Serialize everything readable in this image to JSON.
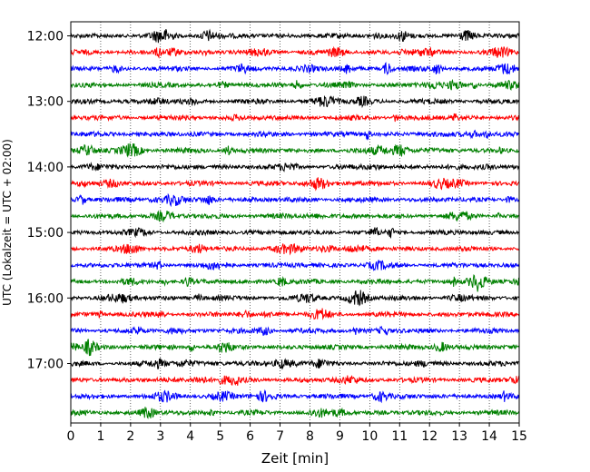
{
  "chart_data": {
    "type": "line",
    "subtype": "seismogram-helicorder",
    "xlabel": "Zeit  [min]",
    "ylabel": "UTC (Lokalzeit = UTC + 02:00)",
    "xlim": [
      0,
      15
    ],
    "x_ticks": [
      0,
      1,
      2,
      3,
      4,
      5,
      6,
      7,
      8,
      9,
      10,
      11,
      12,
      13,
      14,
      15
    ],
    "grid": "vertical dotted at each minute",
    "trace_interval_minutes": 15,
    "trace_count": 24,
    "trace_colors": [
      "#000000",
      "#ff0000",
      "#0000ff",
      "#008000"
    ],
    "y_tick_labels": [
      "12:00",
      "13:00",
      "14:00",
      "15:00",
      "16:00",
      "17:00"
    ]
  }
}
